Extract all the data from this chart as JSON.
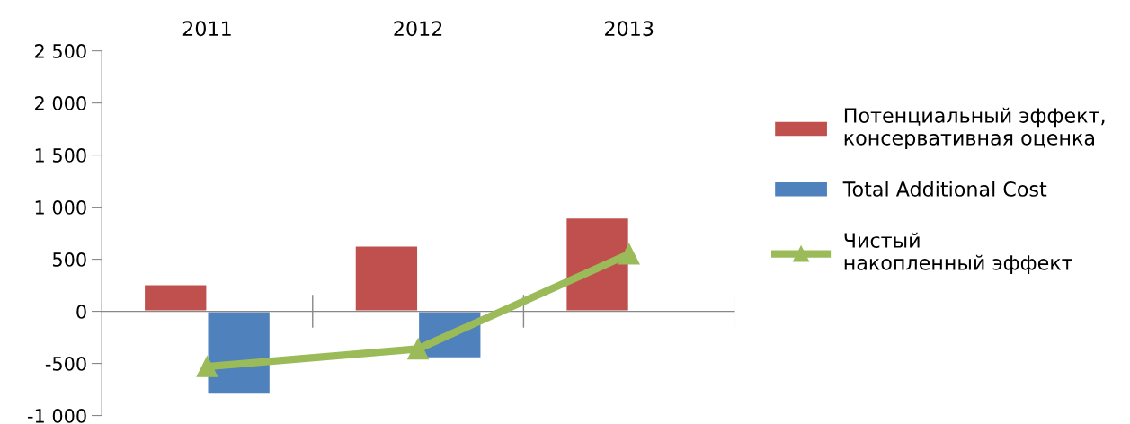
{
  "chart_data": {
    "type": "bar",
    "categories": [
      "2011",
      "2012",
      "2013"
    ],
    "series": [
      {
        "name": "Потенциальный эффект, консервативная оценка",
        "color": "#c0504d",
        "values": [
          260,
          630,
          900
        ]
      },
      {
        "name": "Total Additional Cost",
        "color": "#4f81bd",
        "values": [
          -800,
          -450,
          null
        ]
      },
      {
        "name": "Чистый накопленный эффект",
        "type": "line",
        "color": "#9bbb59",
        "values": [
          -530,
          -360,
          550
        ],
        "marker": "triangle"
      }
    ],
    "ylim": [
      -1000,
      2500
    ],
    "yticks": [
      {
        "value": -1000,
        "label": "-1 000"
      },
      -500,
      0,
      500,
      {
        "value": 1000,
        "label": "1 000"
      },
      {
        "value": 1500,
        "label": "1 500"
      },
      {
        "value": 2000,
        "label": "2 000"
      },
      {
        "value": 2500,
        "label": "2 500"
      }
    ],
    "legend": "right"
  }
}
